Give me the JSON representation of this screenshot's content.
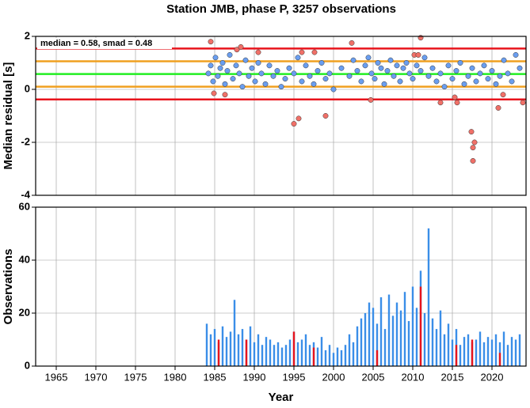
{
  "chart_data": [
    {
      "type": "scatter",
      "title": "Station JMB, phase P, 3257 observations",
      "y_label": "Median residual [s]",
      "annotation": "median = 0.58, smad = 0.48",
      "xlim": [
        1962.4,
        2024.3
      ],
      "xticks": [
        1965,
        1970,
        1975,
        1980,
        1985,
        1990,
        1995,
        2000,
        2005,
        2010,
        2015,
        2020
      ],
      "ylim": [
        -4,
        2
      ],
      "yticks": [
        -4,
        -2,
        0,
        2
      ],
      "grid": true,
      "hlines": [
        {
          "value": 1.54,
          "color": "#e8141c"
        },
        {
          "value": 1.06,
          "color": "#f0a020"
        },
        {
          "value": 0.58,
          "color": "#22ee22"
        },
        {
          "value": 0.1,
          "color": "#f0a020"
        },
        {
          "value": -0.38,
          "color": "#e8141c"
        }
      ],
      "series": [
        {
          "color": "#6a9ef0",
          "x": [
            1984.2,
            1984.5,
            1984.8,
            1985.1,
            1985.4,
            1985.7,
            1986.0,
            1986.3,
            1986.6,
            1986.9,
            1987.3,
            1987.7,
            1988.1,
            1988.5,
            1988.9,
            1989.3,
            1989.7,
            1990.1,
            1990.5,
            1990.9,
            1991.4,
            1991.9,
            1992.4,
            1992.9,
            1993.4,
            1993.9,
            1994.4,
            1995.0,
            1995.5,
            1996.0,
            1996.5,
            1997.0,
            1997.5,
            1998.0,
            1998.5,
            1999.0,
            1999.5,
            2000.0,
            2001.0,
            2002.0,
            2002.5,
            2003.0,
            2003.5,
            2004.0,
            2004.4,
            2004.8,
            2005.2,
            2005.6,
            2006.0,
            2006.4,
            2006.8,
            2007.2,
            2007.6,
            2008.0,
            2008.4,
            2008.8,
            2009.2,
            2009.6,
            2010.0,
            2010.5,
            2011.0,
            2011.5,
            2012.0,
            2012.5,
            2013.0,
            2013.5,
            2014.0,
            2014.5,
            2015.0,
            2015.5,
            2016.0,
            2016.5,
            2017.0,
            2017.5,
            2018.0,
            2018.5,
            2019.0,
            2019.5,
            2020.0,
            2020.5,
            2021.0,
            2021.5,
            2022.0,
            2022.5,
            2023.0,
            2023.5
          ],
          "y": [
            0.6,
            0.9,
            0.3,
            1.2,
            0.5,
            0.8,
            1.0,
            0.2,
            0.7,
            1.3,
            0.4,
            0.9,
            0.6,
            0.1,
            1.1,
            0.5,
            0.8,
            0.3,
            1.0,
            0.6,
            0.2,
            0.9,
            0.5,
            0.7,
            0.1,
            0.4,
            0.8,
            0.6,
            1.2,
            0.3,
            0.9,
            0.5,
            0.2,
            0.7,
            1.0,
            0.4,
            0.6,
            0.0,
            0.8,
            0.5,
            1.1,
            0.7,
            0.3,
            0.9,
            1.2,
            0.6,
            0.4,
            1.0,
            0.8,
            0.2,
            0.7,
            1.1,
            0.5,
            0.9,
            0.3,
            0.8,
            1.0,
            0.6,
            0.4,
            0.9,
            0.7,
            1.2,
            0.5,
            0.8,
            0.3,
            0.6,
            0.1,
            0.9,
            0.4,
            0.7,
            1.0,
            0.2,
            0.5,
            0.8,
            0.3,
            0.6,
            0.9,
            0.4,
            0.7,
            0.2,
            0.5,
            1.1,
            0.6,
            0.3,
            1.3,
            0.8
          ]
        },
        {
          "color": "#f07068",
          "x": [
            1984.5,
            1984.9,
            1986.3,
            1987.8,
            1988.3,
            1990.5,
            1995.0,
            1995.6,
            1996.0,
            1997.6,
            1999.0,
            2002.3,
            2004.7,
            2010.2,
            2010.7,
            2011.0,
            2013.5,
            2015.3,
            2015.6,
            2017.4,
            2017.6,
            2017.8,
            2017.6,
            2020.8,
            2021.4,
            2023.9
          ],
          "y": [
            1.8,
            -0.15,
            -0.2,
            1.5,
            1.6,
            1.4,
            -1.3,
            -1.1,
            1.4,
            1.4,
            -1.0,
            1.75,
            -0.4,
            1.3,
            1.3,
            1.95,
            -0.5,
            -0.3,
            -0.5,
            -1.6,
            -2.2,
            -2.0,
            -2.7,
            -0.7,
            -0.2,
            -0.5
          ]
        }
      ]
    },
    {
      "type": "bar",
      "y_label": "Observations",
      "x_label": "Year",
      "xlim": [
        1962.4,
        2024.3
      ],
      "xticks": [
        1965,
        1970,
        1975,
        1980,
        1985,
        1990,
        1995,
        2000,
        2005,
        2010,
        2015,
        2020
      ],
      "ylim": [
        0,
        60
      ],
      "yticks": [
        0,
        20,
        40,
        60
      ],
      "grid": true,
      "series": [
        {
          "color": "#3a8ee8",
          "x": [
            1984.0,
            1984.5,
            1985.0,
            1985.5,
            1986.0,
            1986.5,
            1987.0,
            1987.5,
            1988.0,
            1988.5,
            1989.0,
            1989.5,
            1990.0,
            1990.5,
            1991.0,
            1991.5,
            1992.0,
            1992.5,
            1993.0,
            1993.5,
            1994.0,
            1994.5,
            1995.0,
            1995.5,
            1996.0,
            1996.5,
            1997.0,
            1997.5,
            1998.0,
            1998.5,
            1999.0,
            1999.5,
            2000.0,
            2000.5,
            2001.0,
            2001.5,
            2002.0,
            2002.5,
            2003.0,
            2003.5,
            2004.0,
            2004.5,
            2005.0,
            2005.5,
            2006.0,
            2006.5,
            2007.0,
            2007.5,
            2008.0,
            2008.5,
            2009.0,
            2009.5,
            2010.0,
            2010.5,
            2011.0,
            2011.5,
            2012.0,
            2012.5,
            2013.0,
            2013.5,
            2014.0,
            2014.5,
            2015.0,
            2015.5,
            2016.0,
            2016.5,
            2017.0,
            2017.5,
            2018.0,
            2018.5,
            2019.0,
            2019.5,
            2020.0,
            2020.5,
            2021.0,
            2021.5,
            2022.0,
            2022.5,
            2023.0,
            2023.5
          ],
          "values": [
            16,
            12,
            14,
            9,
            15,
            11,
            13,
            25,
            12,
            14,
            10,
            15,
            9,
            12,
            8,
            11,
            10,
            8,
            9,
            7,
            8,
            10,
            13,
            9,
            10,
            12,
            8,
            9,
            7,
            11,
            6,
            8,
            5,
            7,
            6,
            8,
            12,
            9,
            15,
            18,
            20,
            24,
            22,
            16,
            26,
            14,
            27,
            19,
            24,
            21,
            28,
            17,
            30,
            22,
            36,
            20,
            52,
            18,
            14,
            21,
            12,
            16,
            10,
            14,
            8,
            11,
            12,
            9,
            10,
            13,
            9,
            11,
            10,
            12,
            9,
            13,
            8,
            11,
            10,
            12
          ]
        },
        {
          "color": "#e8141c",
          "x": [
            1985.5,
            1989.0,
            1995.0,
            1997.5,
            2005.5,
            2011.0,
            2015.5,
            2017.5,
            2021.0
          ],
          "values": [
            10,
            10,
            13,
            7,
            6,
            30,
            8,
            10,
            5
          ]
        }
      ]
    }
  ]
}
